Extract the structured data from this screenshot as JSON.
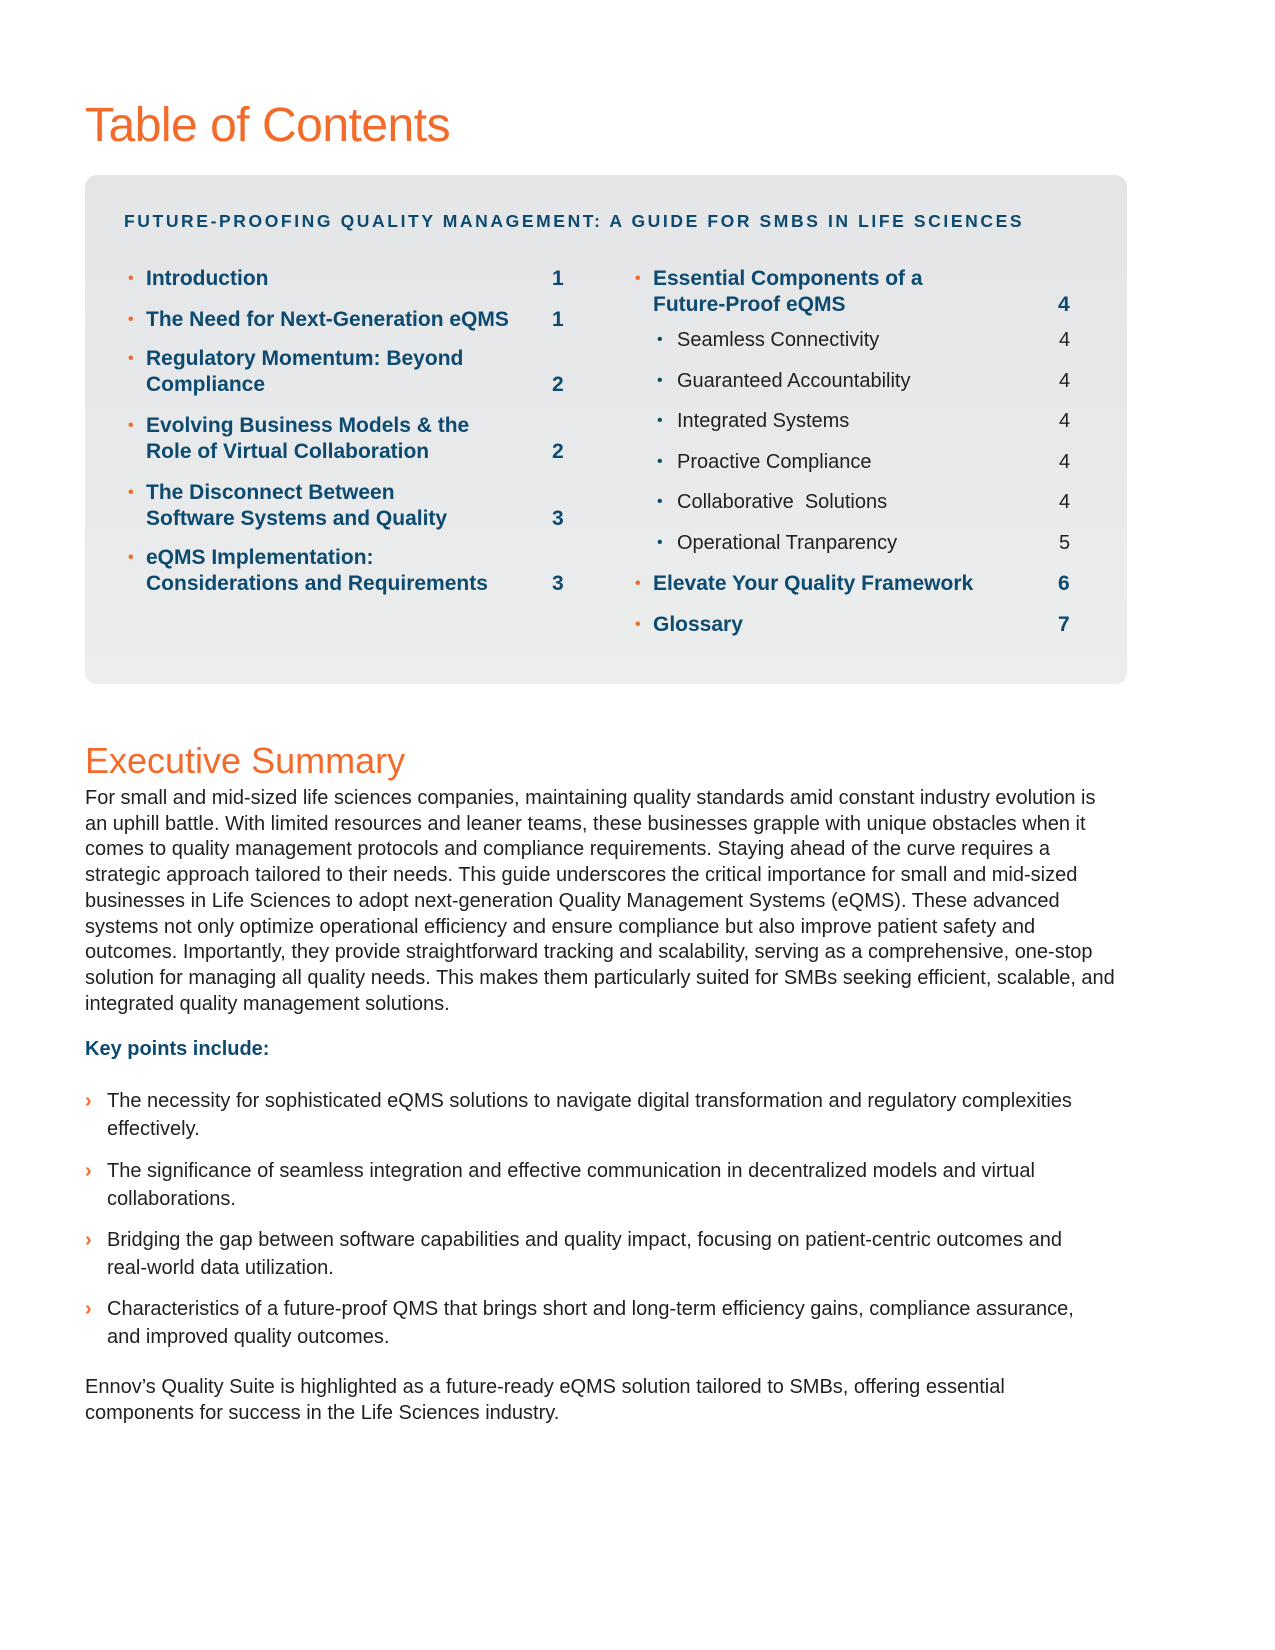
{
  "title": "Table of Contents",
  "toc": {
    "heading": "FUTURE-PROOFING QUALITY MANAGEMENT: A GUIDE FOR SMBS IN LIFE SCIENCES",
    "left": [
      {
        "label": "Introduction",
        "page": "1"
      },
      {
        "label": "The Need for Next-Generation eQMS",
        "page": "1"
      },
      {
        "label": "Regulatory Momentum: Beyond Compliance",
        "page": "2"
      },
      {
        "label": "Evolving Business Models & the Role of Virtual Collaboration",
        "page": "2"
      },
      {
        "label": "The Disconnect Between Software Systems and Quality",
        "page": "3"
      },
      {
        "label": "eQMS Implementation: Considerations and Requirements",
        "page": "3"
      }
    ],
    "right": [
      {
        "label": "Essential Components of a Future-Proof eQMS",
        "page": "4"
      },
      {
        "label": "Elevate Your Quality Framework",
        "page": "6"
      },
      {
        "label": "Glossary",
        "page": "7"
      }
    ],
    "subitems": [
      {
        "label": "Seamless Connectivity",
        "page": "4"
      },
      {
        "label": "Guaranteed Accountability",
        "page": "4"
      },
      {
        "label": "Integrated Systems",
        "page": "4"
      },
      {
        "label": "Proactive Compliance",
        "page": "4"
      },
      {
        "label": "Collaborative  Solutions",
        "page": "4"
      },
      {
        "label": "Operational Tranparency",
        "page": "5"
      }
    ]
  },
  "summary": {
    "heading": "Executive Summary",
    "body": "For small and mid-sized life sciences companies, maintaining quality standards amid constant industry evolution is an uphill battle. With limited resources and leaner teams, these businesses grapple with unique obstacles when it comes to quality management protocols and compliance requirements. Staying ahead of the curve requires a strategic approach tailored to their needs. This guide underscores the critical importance for small and mid-sized businesses in Life Sciences to adopt next-generation Quality Management Systems (eQMS). These advanced systems not only optimize operational efficiency and ensure compliance but also improve patient safety and outcomes. Importantly, they provide straightforward tracking and scalability, serving as a comprehensive, one-stop solution for managing all quality needs. This makes them particularly suited for SMBs seeking efficient, scalable, and integrated quality management solutions.",
    "key_points_heading": "Key points include:",
    "key_points": [
      "The necessity for sophisticated eQMS solutions to navigate digital transformation and regulatory complexities effectively.",
      "The significance of seamless integration and effective communication in decentralized models and virtual collaborations.",
      "Bridging the gap between software capabilities and quality impact, focusing on patient-centric outcomes and real-world data utilization.",
      "Characteristics of a future-proof QMS that brings short and long-term efficiency gains, compliance assurance, and improved quality outcomes."
    ],
    "closing": "Ennov’s Quality Suite is highlighted as a future-ready eQMS solution tailored to SMBs, offering essential components for success in the Life Sciences industry."
  },
  "colors": {
    "accent": "#f26b2a",
    "navy": "#0d4a70",
    "panel": "#e6e7e8"
  },
  "icons": {
    "toc_bullet": "bullet-dot",
    "key_point": "chevron-right-icon"
  }
}
